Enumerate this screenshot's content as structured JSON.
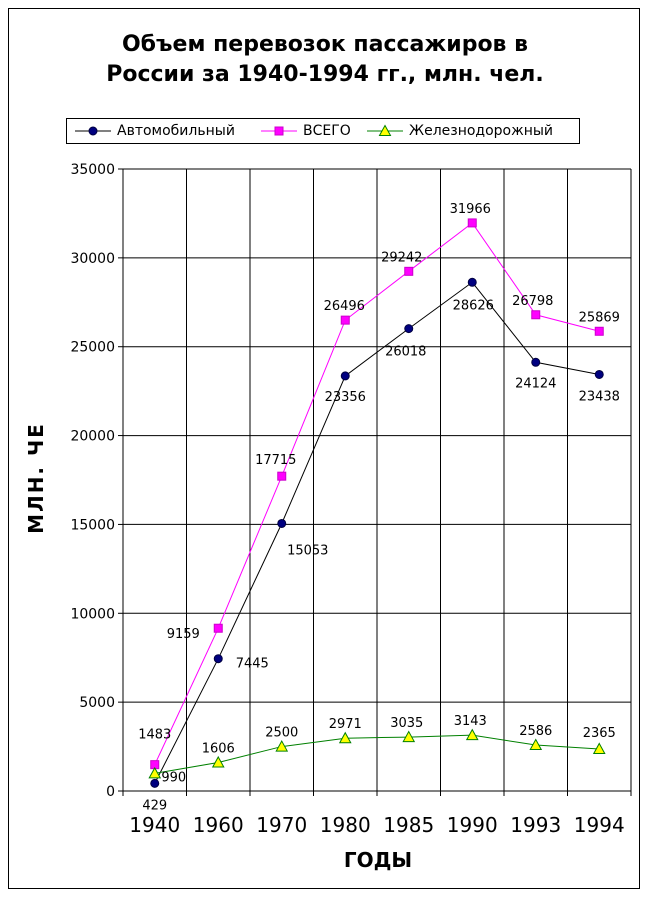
{
  "chart_data": {
    "type": "line",
    "title": "Объем перевозок пассажиров в России за 1940-1994 гг., млн. чел.",
    "title_lines": [
      "Объем перевозок пассажиров в",
      "России за 1940-1994 гг., млн. чел."
    ],
    "xlabel": "ГОДЫ",
    "ylabel": "МЛН. ЧЕ",
    "categories": [
      "1940",
      "1960",
      "1970",
      "1980",
      "1985",
      "1990",
      "1993",
      "1994"
    ],
    "ylim": [
      0,
      35000
    ],
    "yticks": [
      0,
      5000,
      10000,
      15000,
      20000,
      25000,
      30000,
      35000
    ],
    "grid": true,
    "legend_position": "top",
    "series": [
      {
        "name": "Автомобильный",
        "marker": "circle",
        "color": "#000080",
        "values": [
          429,
          7445,
          15053,
          23356,
          26018,
          28626,
          24124,
          23438
        ]
      },
      {
        "name": "ВСЕГО",
        "marker": "square",
        "color": "#ff00ff",
        "values": [
          1483,
          9159,
          17715,
          26496,
          29242,
          31966,
          26798,
          25869
        ]
      },
      {
        "name": "Железнодорожный",
        "marker": "triangle",
        "color": "#008000",
        "fill": "#ffff00",
        "values": [
          990,
          1606,
          2500,
          2971,
          3035,
          3143,
          2586,
          2365
        ]
      }
    ]
  }
}
